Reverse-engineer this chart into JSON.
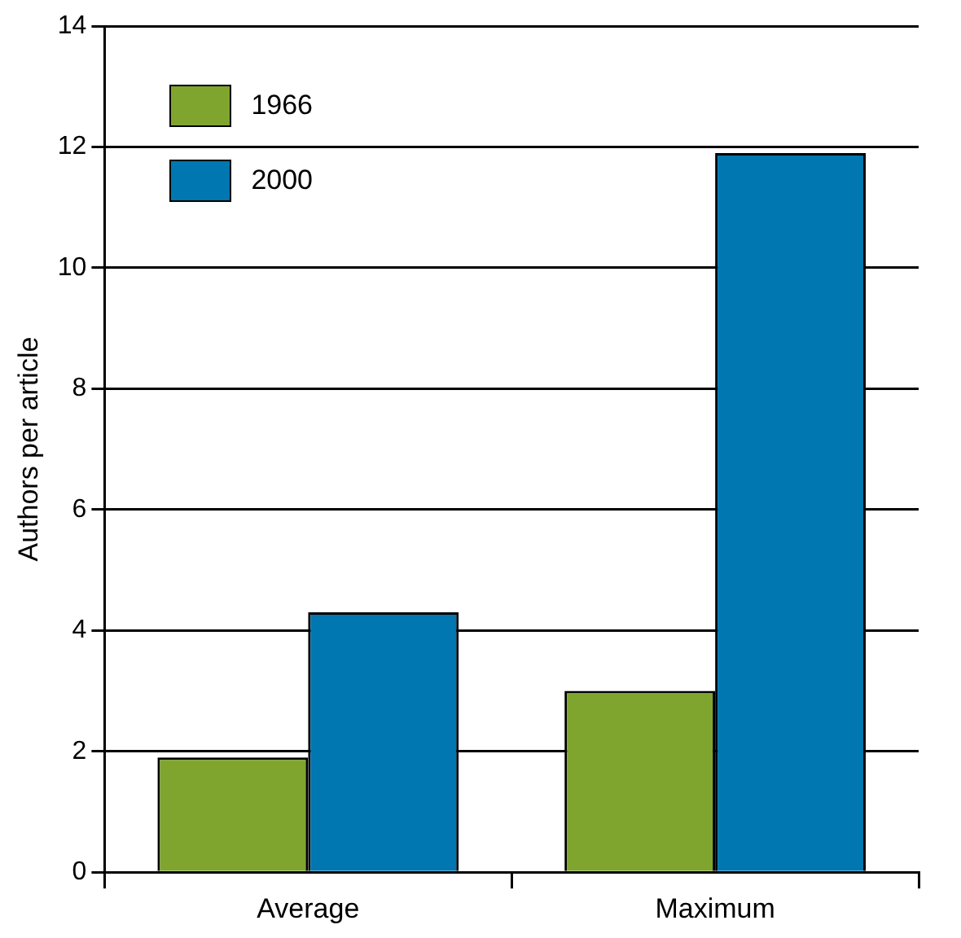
{
  "chart_data": {
    "type": "bar",
    "ylabel": "Authors per article",
    "categories": [
      "Average",
      "Maximum"
    ],
    "series": [
      {
        "name": "1966",
        "color": "#7fa52e",
        "values": [
          1.9,
          3.0
        ]
      },
      {
        "name": "2000",
        "color": "#0077b0",
        "values": [
          4.3,
          11.9
        ]
      }
    ],
    "ylim": [
      0,
      14
    ],
    "yticks": [
      0,
      2,
      4,
      6,
      8,
      10,
      12,
      14
    ],
    "grid": "y",
    "legend": "top left"
  }
}
